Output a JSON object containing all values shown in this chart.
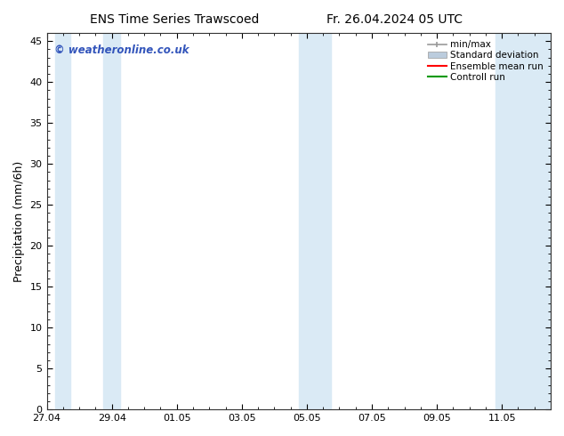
{
  "title_left": "ENS Time Series Trawscoed",
  "title_right": "Fr. 26.04.2024 05 UTC",
  "ylabel": "Precipitation (mm/6h)",
  "ylim": [
    0,
    46
  ],
  "yticks": [
    0,
    5,
    10,
    15,
    20,
    25,
    30,
    35,
    40,
    45
  ],
  "watermark": "© weatheronline.co.uk",
  "watermark_color": "#3355bb",
  "background_color": "#ffffff",
  "plot_bg_color": "#ffffff",
  "x_tick_labels": [
    "27.04",
    "29.04",
    "01.05",
    "03.05",
    "05.05",
    "07.05",
    "09.05",
    "11.05"
  ],
  "x_tick_positions": [
    0,
    2,
    4,
    6,
    8,
    10,
    12,
    14
  ],
  "x_lim": [
    0,
    15.5
  ],
  "legend_labels": [
    "min/max",
    "Standard deviation",
    "Ensemble mean run",
    "Controll run"
  ],
  "shaded_color": "#daeaf5",
  "shaded_bands": [
    [
      0.27,
      0.73
    ],
    [
      1.75,
      2.25
    ],
    [
      7.75,
      8.75
    ],
    [
      13.8,
      15.5
    ]
  ],
  "minmax_color": "#999999",
  "std_color": "#bbccdd",
  "ens_color": "#ff0000",
  "ctrl_color": "#009900"
}
